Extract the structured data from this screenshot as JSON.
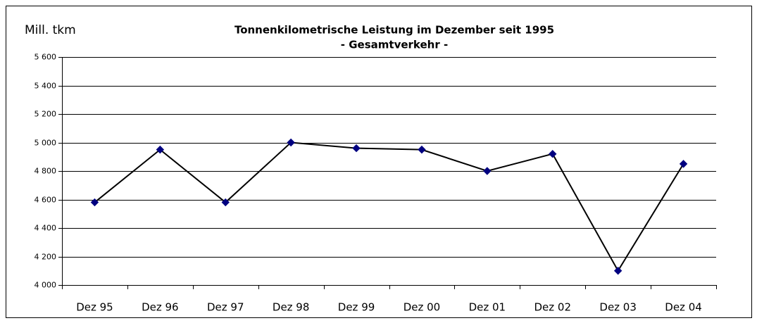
{
  "chart_data": {
    "type": "line",
    "title": "Tonnenkilometrische Leistung im Dezember seit 1995",
    "subtitle": "- Gesamtverkehr -",
    "y_label": "Mill. tkm",
    "categories": [
      "Dez 95",
      "Dez 96",
      "Dez 97",
      "Dez 98",
      "Dez 99",
      "Dez 00",
      "Dez 01",
      "Dez 02",
      "Dez 03",
      "Dez 04"
    ],
    "series": [
      {
        "name": "Gesamtverkehr",
        "color": "#000000",
        "marker_color": "#000080",
        "values": [
          4580,
          4950,
          4580,
          5000,
          4960,
          4950,
          4800,
          4920,
          4100,
          4850
        ]
      }
    ],
    "ylim": [
      4000,
      5600
    ],
    "yticks": [
      {
        "value": 4000,
        "label": "4 000"
      },
      {
        "value": 4200,
        "label": "4 200"
      },
      {
        "value": 4400,
        "label": "4 400"
      },
      {
        "value": 4600,
        "label": "4 600"
      },
      {
        "value": 4800,
        "label": "4 800"
      },
      {
        "value": 5000,
        "label": "5 000"
      },
      {
        "value": 5200,
        "label": "5 200"
      },
      {
        "value": 5400,
        "label": "5 400"
      },
      {
        "value": 5600,
        "label": "5 600"
      }
    ],
    "grid": true
  }
}
